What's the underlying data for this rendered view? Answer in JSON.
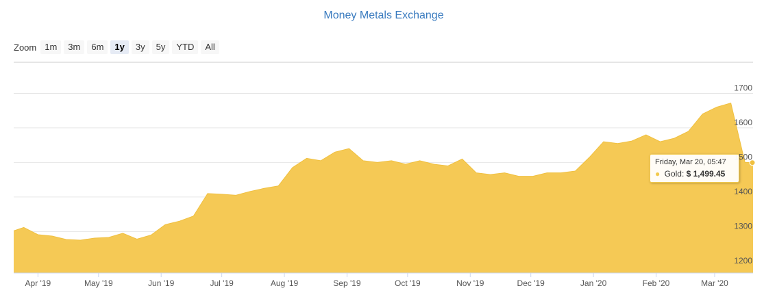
{
  "colors": {
    "area": "#f5c955",
    "line": "#f0c040",
    "title": "#3a7bbf",
    "grid": "#e6e6e6"
  },
  "header": {
    "title": "Money Metals Exchange"
  },
  "zoom": {
    "label": "Zoom",
    "selected": "1y",
    "buttons": [
      "1m",
      "3m",
      "6m",
      "1y",
      "3y",
      "5y",
      "YTD",
      "All"
    ]
  },
  "tooltip": {
    "date": "Friday, Mar 20, 05:47",
    "series": "Gold:",
    "value": "$ 1,499.45"
  },
  "chart_data": {
    "type": "area",
    "series": [
      {
        "name": "Gold",
        "x": [
          "2019-03-20",
          "2019-03-25",
          "2019-04-01",
          "2019-04-08",
          "2019-04-15",
          "2019-04-22",
          "2019-04-29",
          "2019-05-06",
          "2019-05-13",
          "2019-05-20",
          "2019-05-27",
          "2019-06-03",
          "2019-06-10",
          "2019-06-17",
          "2019-06-24",
          "2019-07-01",
          "2019-07-08",
          "2019-07-15",
          "2019-07-22",
          "2019-07-29",
          "2019-08-05",
          "2019-08-12",
          "2019-08-19",
          "2019-08-26",
          "2019-09-02",
          "2019-09-09",
          "2019-09-16",
          "2019-09-23",
          "2019-09-30",
          "2019-10-07",
          "2019-10-14",
          "2019-10-21",
          "2019-10-28",
          "2019-11-04",
          "2019-11-11",
          "2019-11-18",
          "2019-11-25",
          "2019-12-02",
          "2019-12-09",
          "2019-12-16",
          "2019-12-23",
          "2019-12-30",
          "2020-01-06",
          "2020-01-13",
          "2020-01-20",
          "2020-01-27",
          "2020-02-03",
          "2020-02-10",
          "2020-02-17",
          "2020-02-24",
          "2020-03-02",
          "2020-03-09",
          "2020-03-16",
          "2020-03-20"
        ],
        "values": [
          1302,
          1312,
          1291,
          1287,
          1277,
          1275,
          1281,
          1283,
          1295,
          1278,
          1290,
          1320,
          1330,
          1345,
          1410,
          1408,
          1405,
          1416,
          1425,
          1432,
          1485,
          1512,
          1505,
          1530,
          1540,
          1505,
          1500,
          1505,
          1495,
          1505,
          1495,
          1490,
          1510,
          1470,
          1465,
          1470,
          1460,
          1460,
          1470,
          1470,
          1475,
          1515,
          1560,
          1555,
          1562,
          1580,
          1560,
          1570,
          1590,
          1640,
          1660,
          1672,
          1500,
          1499.45
        ]
      }
    ],
    "y_ticks": [
      1200,
      1300,
      1400,
      1500,
      1600,
      1700
    ],
    "ylim": [
      1180,
      1790
    ],
    "x_ticks": [
      {
        "label": "Apr '19",
        "date": "2019-04-01"
      },
      {
        "label": "May '19",
        "date": "2019-05-01"
      },
      {
        "label": "Jun '19",
        "date": "2019-06-01"
      },
      {
        "label": "Jul '19",
        "date": "2019-07-01"
      },
      {
        "label": "Aug '19",
        "date": "2019-08-01"
      },
      {
        "label": "Sep '19",
        "date": "2019-09-01"
      },
      {
        "label": "Oct '19",
        "date": "2019-10-01"
      },
      {
        "label": "Nov '19",
        "date": "2019-11-01"
      },
      {
        "label": "Dec '19",
        "date": "2019-12-01"
      },
      {
        "label": "Jan '20",
        "date": "2020-01-01"
      },
      {
        "label": "Feb '20",
        "date": "2020-02-01"
      },
      {
        "label": "Mar '20",
        "date": "2020-03-01"
      }
    ],
    "grid": true,
    "y_axis_side": "right"
  }
}
